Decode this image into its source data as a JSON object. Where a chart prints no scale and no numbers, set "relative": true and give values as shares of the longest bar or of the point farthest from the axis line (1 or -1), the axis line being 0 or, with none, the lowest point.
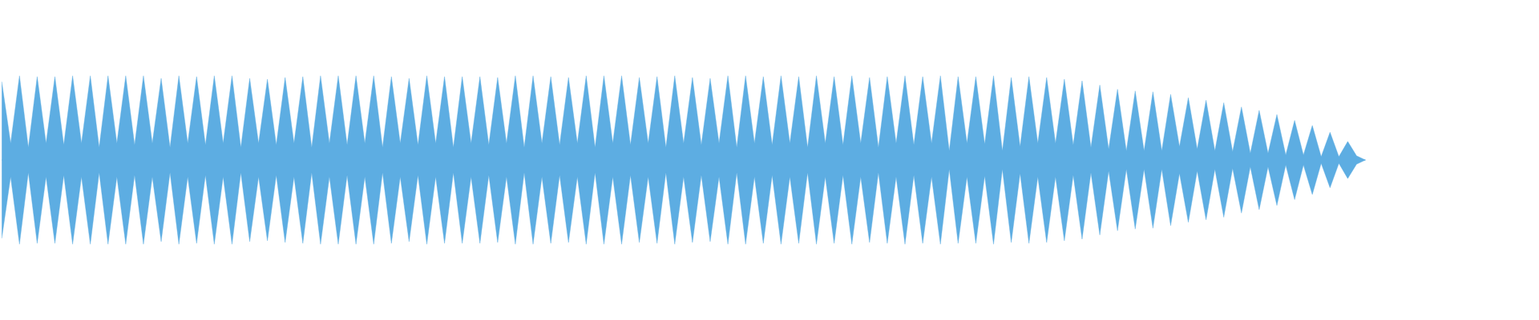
{
  "chart_data": {
    "type": "area",
    "relative": true,
    "ref_lines": [
      {
        "axis": "y",
        "value": 0,
        "color": "#5dade2"
      }
    ],
    "categories": [
      null,
      null,
      null,
      null,
      null,
      null,
      null,
      null,
      null,
      null,
      null,
      null,
      null,
      null,
      null,
      null,
      null,
      null,
      null,
      null,
      null,
      null,
      null,
      null,
      null,
      null,
      null,
      null,
      null,
      null,
      null,
      null,
      null,
      null,
      null,
      null,
      null,
      null,
      null,
      null,
      null,
      null,
      null,
      null,
      null,
      null,
      null,
      null,
      null,
      null,
      null,
      null,
      null,
      null,
      null,
      null,
      null,
      null,
      null,
      null,
      null,
      null,
      null,
      null,
      null,
      null,
      null,
      null,
      null,
      null,
      null,
      null,
      null,
      null,
      null,
      null,
      null,
      null,
      null,
      null,
      null,
      null,
      null,
      null,
      null,
      null,
      null,
      null,
      null,
      null,
      null,
      null,
      null,
      null,
      null,
      null,
      null,
      null,
      null,
      null,
      null,
      null,
      null,
      null,
      null,
      null,
      null,
      null,
      null,
      null,
      null,
      null,
      null,
      null,
      null,
      null,
      null,
      null,
      null,
      null,
      null,
      null,
      null,
      null,
      null,
      null,
      null,
      null,
      null,
      null,
      null,
      null,
      null,
      null,
      null,
      null,
      null,
      null,
      null,
      null,
      null,
      null,
      null,
      null,
      null,
      null,
      null,
      null,
      null,
      null,
      null,
      null,
      null,
      null,
      null
    ],
    "series": [
      {
        "color": "#5dade2",
        "values": [
          0.93,
          0.2,
          1,
          0.15,
          0.99,
          0.2,
          0.99,
          0.18,
          1,
          0.2,
          1,
          0.15,
          1,
          0.2,
          1,
          0.18,
          1,
          0.2,
          0.97,
          0.15,
          1,
          0.2,
          0.99,
          0.18,
          1,
          0.2,
          1,
          0.15,
          0.97,
          0.2,
          0.96,
          0.18,
          0.98,
          0.2,
          0.99,
          0.15,
          1,
          0.2,
          1,
          0.18,
          1,
          0.2,
          1,
          0.15,
          0.99,
          0.2,
          0.97,
          0.18,
          1,
          0.2,
          0.99,
          0.15,
          0.99,
          0.2,
          0.99,
          0.18,
          0.98,
          0.2,
          1,
          0.15,
          1,
          0.2,
          0.99,
          0.18,
          0.98,
          0.2,
          1,
          0.15,
          1,
          0.2,
          1,
          0.18,
          0.98,
          0.2,
          0.99,
          0.15,
          1,
          0.2,
          0.98,
          0.18,
          0.97,
          0.2,
          1,
          0.15,
          1,
          0.2,
          0.99,
          0.18,
          1,
          0.2,
          0.99,
          0.15,
          1,
          0.2,
          0.99,
          0.18,
          1,
          0.2,
          0.98,
          0.15,
          0.99,
          0.2,
          1,
          0.18,
          0.99,
          0.2,
          1,
          0.11,
          0.99,
          0.2,
          0.99,
          0.19,
          1,
          0.11,
          0.98,
          0.16,
          0.99,
          0.2,
          0.98,
          0.2,
          0.96,
          0.18,
          0.94,
          0.15,
          0.89,
          0.13,
          0.84,
          0.11,
          0.82,
          0.11,
          0.81,
          0.11,
          0.78,
          0.16,
          0.74,
          0.13,
          0.71,
          0.11,
          0.68,
          0.1,
          0.63,
          0.08,
          0.59,
          0.08,
          0.54,
          0.06,
          0.47,
          0.06,
          0.41,
          0.04,
          0.33,
          0.04,
          0.22,
          0.05,
          0
        ]
      },
      {
        "color": "#5dade2",
        "values": [
          -0.93,
          -0.2,
          -1,
          -0.15,
          -0.99,
          -0.2,
          -0.99,
          -0.18,
          -1,
          -0.2,
          -1,
          -0.15,
          -1,
          -0.2,
          -1,
          -0.18,
          -1,
          -0.2,
          -0.97,
          -0.15,
          -1,
          -0.2,
          -0.99,
          -0.18,
          -1,
          -0.2,
          -1,
          -0.15,
          -0.97,
          -0.2,
          -0.96,
          -0.18,
          -0.98,
          -0.2,
          -0.99,
          -0.15,
          -1,
          -0.2,
          -1,
          -0.18,
          -1,
          -0.2,
          -1,
          -0.15,
          -0.99,
          -0.2,
          -0.97,
          -0.18,
          -1,
          -0.2,
          -0.99,
          -0.15,
          -0.99,
          -0.2,
          -0.99,
          -0.18,
          -0.98,
          -0.2,
          -1,
          -0.15,
          -1,
          -0.2,
          -0.99,
          -0.18,
          -0.98,
          -0.2,
          -1,
          -0.15,
          -1,
          -0.2,
          -1,
          -0.18,
          -0.98,
          -0.2,
          -0.99,
          -0.15,
          -1,
          -0.2,
          -0.98,
          -0.18,
          -0.97,
          -0.2,
          -1,
          -0.15,
          -1,
          -0.2,
          -0.99,
          -0.18,
          -1,
          -0.2,
          -0.99,
          -0.15,
          -1,
          -0.2,
          -0.99,
          -0.18,
          -1,
          -0.2,
          -0.98,
          -0.15,
          -0.99,
          -0.2,
          -1,
          -0.18,
          -0.99,
          -0.2,
          -1,
          -0.11,
          -0.99,
          -0.2,
          -0.99,
          -0.19,
          -1,
          -0.11,
          -0.98,
          -0.16,
          -0.99,
          -0.2,
          -0.98,
          -0.2,
          -0.96,
          -0.18,
          -0.94,
          -0.15,
          -0.89,
          -0.13,
          -0.84,
          -0.11,
          -0.82,
          -0.11,
          -0.81,
          -0.11,
          -0.78,
          -0.16,
          -0.74,
          -0.13,
          -0.71,
          -0.11,
          -0.68,
          -0.1,
          -0.63,
          -0.08,
          -0.59,
          -0.08,
          -0.54,
          -0.06,
          -0.47,
          -0.06,
          -0.41,
          -0.04,
          -0.33,
          -0.04,
          -0.22,
          -0.05,
          0
        ]
      }
    ]
  }
}
